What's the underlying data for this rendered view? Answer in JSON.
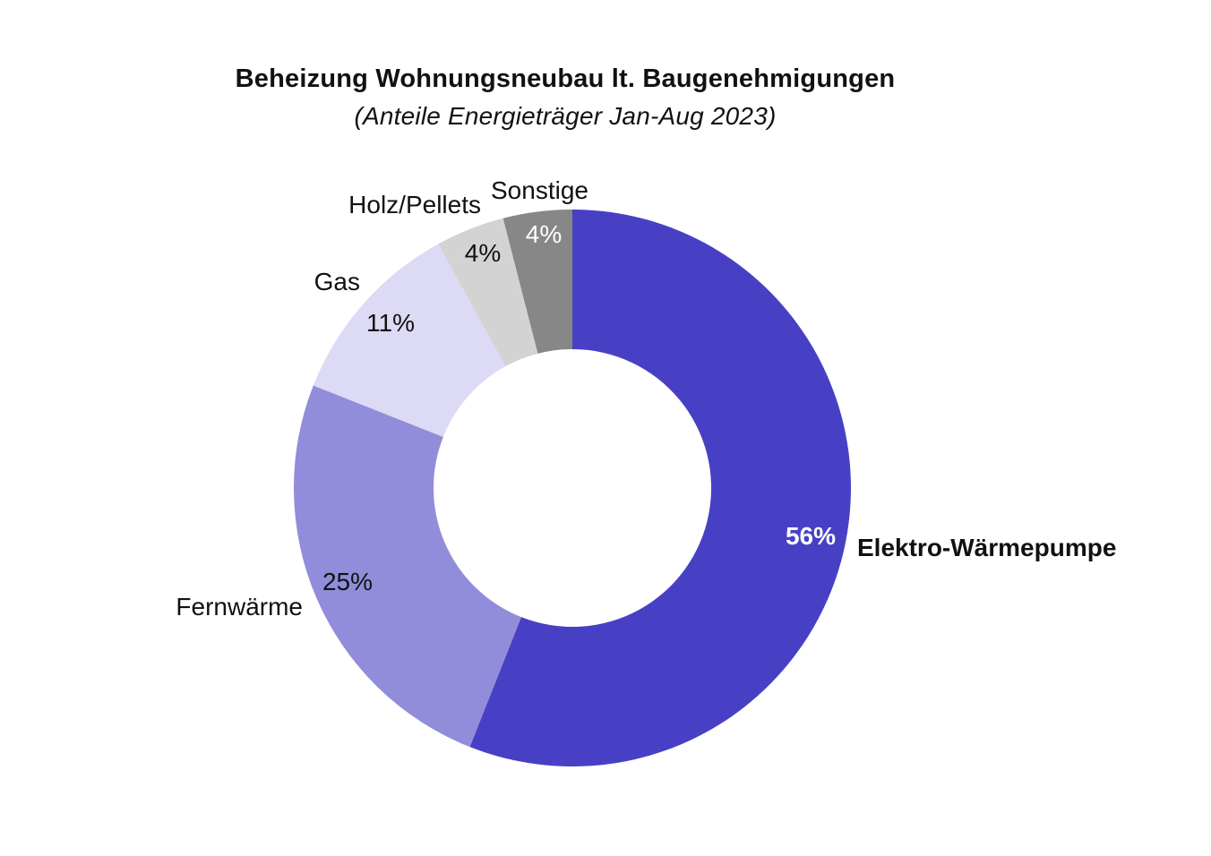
{
  "chart_data": {
    "type": "pie",
    "style": "donut",
    "title": "Beheizung Wohnungsneubau lt. Baugenehmigungen",
    "subtitle": "(Anteile Energieträger Jan-Aug 2023)",
    "slices": [
      {
        "label": "Elektro-Wärmepumpe",
        "value": 56,
        "value_label": "56%",
        "color": "#4840c4",
        "text_color": "#ffffff",
        "label_bold": true
      },
      {
        "label": "Fernwärme",
        "value": 25,
        "value_label": "25%",
        "color": "#918dda",
        "text_color": "#111111",
        "label_bold": false
      },
      {
        "label": "Gas",
        "value": 11,
        "value_label": "11%",
        "color": "#dcdaf4",
        "text_color": "#111111",
        "label_bold": false
      },
      {
        "label": "Holz/Pellets",
        "value": 4,
        "value_label": "4%",
        "color": "#d3d3d3",
        "text_color": "#111111",
        "label_bold": false
      },
      {
        "label": "Sonstige",
        "value": 4,
        "value_label": "4%",
        "color": "#878787",
        "text_color": "#ffffff",
        "label_bold": false
      }
    ],
    "legend": "none"
  }
}
